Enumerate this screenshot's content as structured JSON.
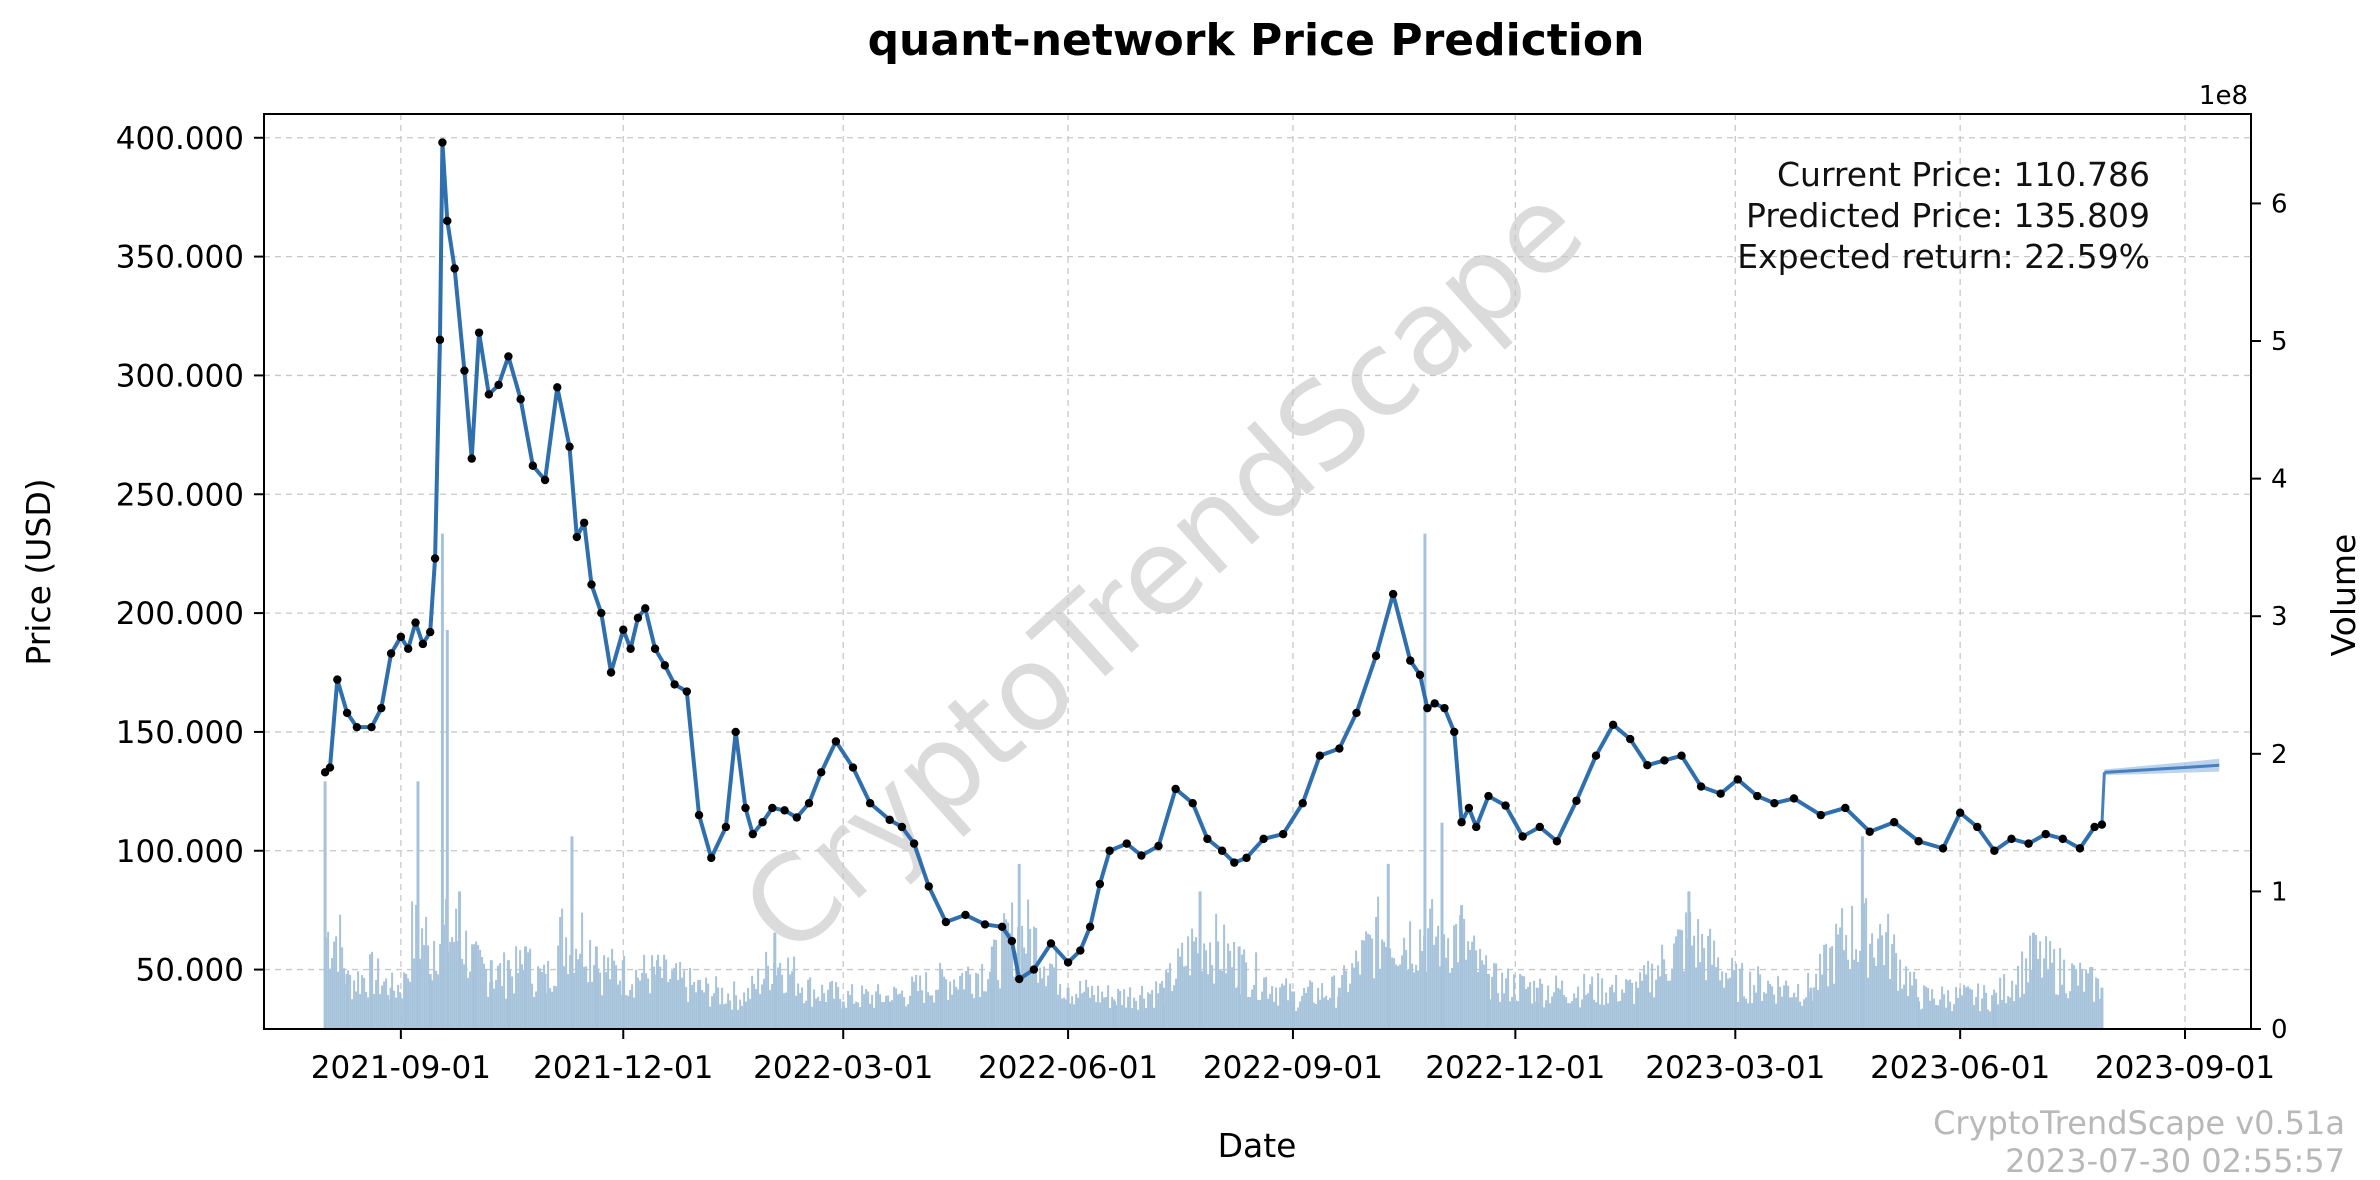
{
  "chart_data": {
    "type": "line",
    "title": "quant-network Price Prediction",
    "xlabel": "Date",
    "ylabel": "Price (USD)",
    "y2label": "Volume",
    "y2_offset_label": "1e8",
    "x_ticks": [
      "2021-09-01",
      "2021-12-01",
      "2022-03-01",
      "2022-06-01",
      "2022-09-01",
      "2022-12-01",
      "2023-03-01",
      "2023-06-01",
      "2023-09-01"
    ],
    "xlim": [
      "2021-07-07",
      "2023-09-28"
    ],
    "y_ticks": [
      50,
      100,
      150,
      200,
      250,
      300,
      350,
      400
    ],
    "y_tick_labels": [
      "50.000",
      "100.000",
      "150.000",
      "200.000",
      "250.000",
      "300.000",
      "350.000",
      "400.000"
    ],
    "ylim": [
      25,
      410
    ],
    "y2_ticks": [
      0,
      1,
      2,
      3,
      4,
      5,
      6
    ],
    "y2lim": [
      0,
      6.65
    ],
    "grid": true,
    "series": [
      {
        "type": "line",
        "color": "#2f6fad",
        "markers": true,
        "marker_color": "#000000",
        "x": [
          "2021-08-01",
          "2021-08-03",
          "2021-08-06",
          "2021-08-10",
          "2021-08-14",
          "2021-08-20",
          "2021-08-24",
          "2021-08-28",
          "2021-09-01",
          "2021-09-04",
          "2021-09-07",
          "2021-09-10",
          "2021-09-13",
          "2021-09-15",
          "2021-09-17",
          "2021-09-18",
          "2021-09-20",
          "2021-09-23",
          "2021-09-27",
          "2021-09-30",
          "2021-10-03",
          "2021-10-07",
          "2021-10-11",
          "2021-10-15",
          "2021-10-20",
          "2021-10-25",
          "2021-10-30",
          "2021-11-04",
          "2021-11-09",
          "2021-11-12",
          "2021-11-15",
          "2021-11-18",
          "2021-11-22",
          "2021-11-26",
          "2021-12-01",
          "2021-12-04",
          "2021-12-07",
          "2021-12-10",
          "2021-12-14",
          "2021-12-18",
          "2021-12-22",
          "2021-12-27",
          "2022-01-01",
          "2022-01-06",
          "2022-01-12",
          "2022-01-16",
          "2022-01-20",
          "2022-01-23",
          "2022-01-27",
          "2022-01-31",
          "2022-02-05",
          "2022-02-10",
          "2022-02-15",
          "2022-02-20",
          "2022-02-26",
          "2022-03-05",
          "2022-03-12",
          "2022-03-20",
          "2022-03-25",
          "2022-03-30",
          "2022-04-05",
          "2022-04-12",
          "2022-04-20",
          "2022-04-28",
          "2022-05-05",
          "2022-05-09",
          "2022-05-12",
          "2022-05-18",
          "2022-05-25",
          "2022-06-01",
          "2022-06-06",
          "2022-06-10",
          "2022-06-14",
          "2022-06-18",
          "2022-06-25",
          "2022-07-01",
          "2022-07-08",
          "2022-07-15",
          "2022-07-22",
          "2022-07-28",
          "2022-08-03",
          "2022-08-08",
          "2022-08-13",
          "2022-08-20",
          "2022-08-28",
          "2022-09-05",
          "2022-09-12",
          "2022-09-20",
          "2022-09-27",
          "2022-10-05",
          "2022-10-12",
          "2022-10-19",
          "2022-10-23",
          "2022-10-26",
          "2022-10-29",
          "2022-11-02",
          "2022-11-06",
          "2022-11-09",
          "2022-11-12",
          "2022-11-15",
          "2022-11-20",
          "2022-11-27",
          "2022-12-04",
          "2022-12-11",
          "2022-12-18",
          "2022-12-26",
          "2023-01-03",
          "2023-01-10",
          "2023-01-17",
          "2023-01-24",
          "2023-01-31",
          "2023-02-07",
          "2023-02-15",
          "2023-02-23",
          "2023-03-02",
          "2023-03-10",
          "2023-03-17",
          "2023-03-25",
          "2023-04-05",
          "2023-04-15",
          "2023-04-25",
          "2023-05-05",
          "2023-05-15",
          "2023-05-25",
          "2023-06-01",
          "2023-06-08",
          "2023-06-15",
          "2023-06-22",
          "2023-06-29",
          "2023-07-06",
          "2023-07-13",
          "2023-07-20",
          "2023-07-26",
          "2023-07-29"
        ],
        "y": [
          133,
          135,
          172,
          158,
          152,
          152,
          160,
          183,
          190,
          185,
          196,
          187,
          192,
          223,
          315,
          398,
          365,
          345,
          302,
          265,
          318,
          292,
          296,
          308,
          290,
          262,
          256,
          295,
          270,
          232,
          238,
          212,
          200,
          175,
          193,
          185,
          198,
          202,
          185,
          178,
          170,
          167,
          115,
          97,
          110,
          150,
          118,
          107,
          112,
          118,
          117,
          114,
          120,
          133,
          146,
          135,
          120,
          113,
          110,
          103,
          85,
          70,
          73,
          69,
          68,
          62,
          46,
          50,
          61,
          53,
          58,
          68,
          86,
          100,
          103,
          98,
          102,
          126,
          120,
          105,
          100,
          95,
          97,
          105,
          107,
          120,
          140,
          143,
          158,
          182,
          208,
          180,
          174,
          160,
          162,
          160,
          150,
          112,
          118,
          110,
          123,
          119,
          106,
          110,
          104,
          121,
          140,
          153,
          147,
          136,
          138,
          140,
          127,
          124,
          130,
          123,
          120,
          122,
          115,
          118,
          108,
          112,
          104,
          101,
          116,
          110,
          100,
          105,
          103,
          107,
          105,
          101,
          110,
          111
        ],
        "y_unit": "USD"
      },
      {
        "type": "line",
        "color": "#4a7fbf",
        "band": true,
        "x": [
          "2023-07-30",
          "2023-08-15",
          "2023-08-31",
          "2023-09-15"
        ],
        "y": [
          133,
          134,
          135,
          136
        ]
      },
      {
        "type": "bar",
        "axis": "right",
        "color": "#a7c3db",
        "x": [
          "2021-08-01",
          "2021-08-10",
          "2021-08-20",
          "2021-08-28",
          "2021-09-03",
          "2021-09-08",
          "2021-09-13",
          "2021-09-18",
          "2021-09-20",
          "2021-09-25",
          "2021-10-01",
          "2021-10-08",
          "2021-10-15",
          "2021-10-22",
          "2021-10-30",
          "2021-11-10",
          "2021-11-20",
          "2021-12-01",
          "2021-12-15",
          "2022-01-01",
          "2022-01-20",
          "2022-02-01",
          "2022-02-15",
          "2022-03-01",
          "2022-03-20",
          "2022-04-10",
          "2022-05-01",
          "2022-05-12",
          "2022-06-01",
          "2022-06-20",
          "2022-07-10",
          "2022-07-25",
          "2022-08-10",
          "2022-09-01",
          "2022-09-20",
          "2022-10-10",
          "2022-10-25",
          "2022-11-01",
          "2022-11-09",
          "2022-11-20",
          "2022-12-10",
          "2023-01-01",
          "2023-01-20",
          "2023-02-10",
          "2023-03-01",
          "2023-04-01",
          "2023-04-22",
          "2023-05-15",
          "2023-06-15",
          "2023-07-01",
          "2023-07-29"
        ],
        "values": [
          1.8,
          0.4,
          0.5,
          0.3,
          0.4,
          1.8,
          0.4,
          3.6,
          2.9,
          1.0,
          0.6,
          0.5,
          0.5,
          0.6,
          0.4,
          1.4,
          0.6,
          0.5,
          0.5,
          0.3,
          0.2,
          0.7,
          0.3,
          0.2,
          0.2,
          0.4,
          0.6,
          1.2,
          0.3,
          0.2,
          0.3,
          1.0,
          0.6,
          0.2,
          0.3,
          1.2,
          3.6,
          1.5,
          0.9,
          0.4,
          0.3,
          0.3,
          0.3,
          1.0,
          0.4,
          0.3,
          1.4,
          0.2,
          0.2,
          0.7,
          0.3
        ]
      }
    ],
    "annotations": [
      "Current Price: 110.786",
      "Predicted Price: 135.809",
      "Expected return: 22.59%"
    ],
    "watermark": "CryptoTrendScape",
    "footer": [
      "CryptoTrendScape v0.51a",
      "2023-07-30 02:55:57"
    ]
  }
}
